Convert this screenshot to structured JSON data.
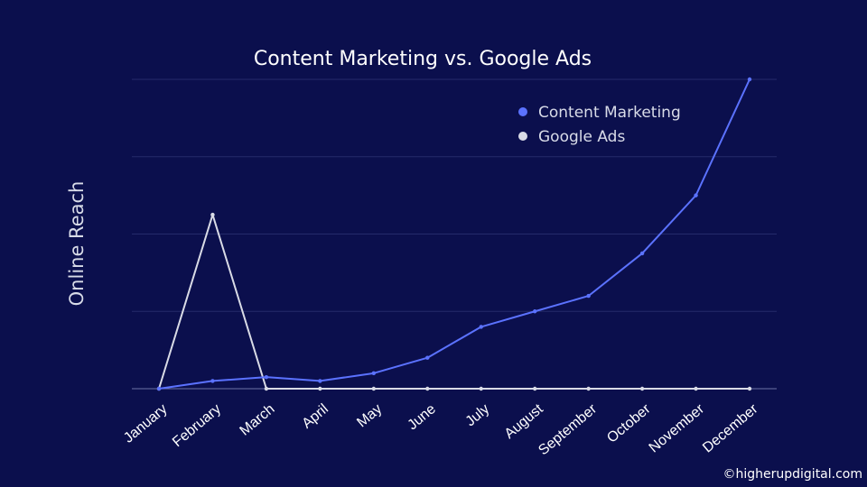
{
  "chart_data": {
    "type": "line",
    "title": "Content Marketing vs. Google Ads",
    "ylabel": "Online Reach",
    "xlabel": "",
    "categories": [
      "January",
      "February",
      "March",
      "April",
      "May",
      "June",
      "July",
      "August",
      "September",
      "October",
      "November",
      "December"
    ],
    "series": [
      {
        "name": "Content Marketing",
        "color": "#5b72ff",
        "values": [
          0,
          0.5,
          0.75,
          0.5,
          1,
          2,
          4,
          5,
          6,
          8.75,
          12.5,
          20
        ]
      },
      {
        "name": "Google Ads",
        "color": "#d9dbe6",
        "values": [
          0,
          11.25,
          0,
          0,
          0,
          0,
          0,
          0,
          0,
          0,
          0,
          0
        ]
      }
    ],
    "ylim": [
      0,
      20
    ],
    "grid": true,
    "legend": "top-right",
    "grid_color": "#242a6a",
    "background": "#0b0f4d"
  },
  "credit": "©higherupdigital.com"
}
